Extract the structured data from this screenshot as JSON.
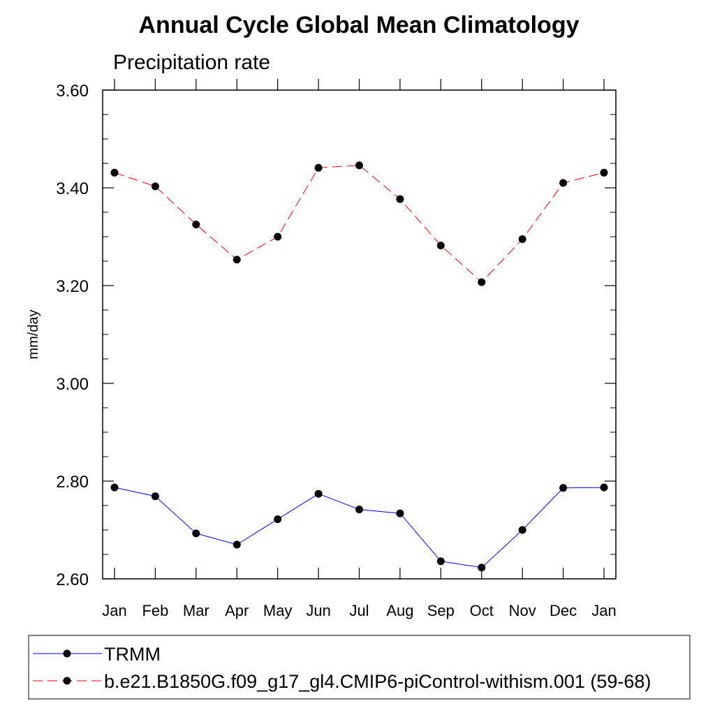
{
  "chart_data": {
    "type": "line",
    "title": "Annual Cycle Global Mean Climatology",
    "subtitle": "Precipitation rate",
    "xlabel": "",
    "ylabel": "mm/day",
    "categories": [
      "Jan",
      "Feb",
      "Mar",
      "Apr",
      "May",
      "Jun",
      "Jul",
      "Aug",
      "Sep",
      "Oct",
      "Nov",
      "Dec",
      "Jan"
    ],
    "ylim": [
      2.6,
      3.6
    ],
    "yticks": [
      2.6,
      2.8,
      3.0,
      3.2,
      3.4,
      3.6
    ],
    "ytick_labels": [
      "2.60",
      "2.80",
      "3.00",
      "3.20",
      "3.40",
      "3.60"
    ],
    "grid": false,
    "legend_position": "bottom",
    "series": [
      {
        "name": "TRMM",
        "color": "#0000ff",
        "line_style": "solid",
        "marker": "filled-circle",
        "values": [
          2.787,
          2.769,
          2.693,
          2.67,
          2.722,
          2.774,
          2.742,
          2.734,
          2.636,
          2.623,
          2.7,
          2.786,
          2.787
        ]
      },
      {
        "name": "b.e21.B1850G.f09_g17_gl4.CMIP6-piControl-withism.001 (59-68)",
        "color": "#ff0000",
        "line_style": "dashed",
        "marker": "filled-circle",
        "values": [
          3.431,
          3.403,
          3.325,
          3.253,
          3.3,
          3.441,
          3.446,
          3.377,
          3.282,
          3.207,
          3.295,
          3.41,
          3.431
        ]
      }
    ]
  }
}
